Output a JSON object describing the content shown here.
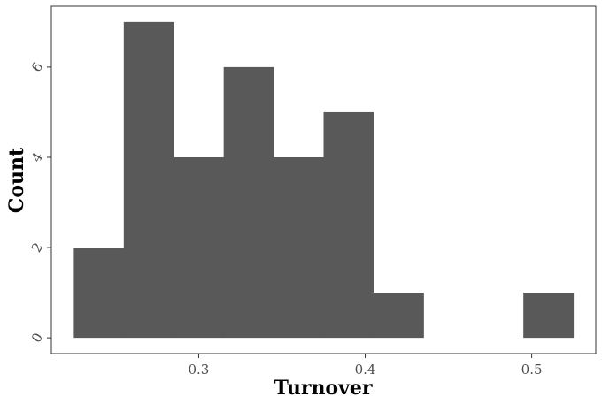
{
  "chart_data": {
    "type": "bar",
    "subtype": "histogram",
    "title": "",
    "xlabel": "Turnover",
    "ylabel": "Count",
    "bin_width": 0.03,
    "bins": [
      {
        "start": 0.225,
        "end": 0.255,
        "count": 2
      },
      {
        "start": 0.255,
        "end": 0.285,
        "count": 7
      },
      {
        "start": 0.285,
        "end": 0.315,
        "count": 4
      },
      {
        "start": 0.315,
        "end": 0.345,
        "count": 6
      },
      {
        "start": 0.345,
        "end": 0.375,
        "count": 4
      },
      {
        "start": 0.375,
        "end": 0.405,
        "count": 5
      },
      {
        "start": 0.405,
        "end": 0.435,
        "count": 1
      },
      {
        "start": 0.435,
        "end": 0.465,
        "count": 0
      },
      {
        "start": 0.465,
        "end": 0.495,
        "count": 0
      },
      {
        "start": 0.495,
        "end": 0.525,
        "count": 1
      }
    ],
    "xlim": [
      0.2115,
      0.5385
    ],
    "ylim": [
      -0.35,
      7.35
    ],
    "x_ticks": [
      {
        "value": 0.3,
        "label": "0.3"
      },
      {
        "value": 0.4,
        "label": "0.4"
      },
      {
        "value": 0.5,
        "label": "0.5"
      }
    ],
    "y_ticks": [
      {
        "value": 0,
        "label": "0"
      },
      {
        "value": 2,
        "label": "2"
      },
      {
        "value": 4,
        "label": "4"
      },
      {
        "value": 6,
        "label": "6"
      }
    ],
    "grid": false,
    "legend": "none",
    "bar_color": "#595959",
    "frame_color": "#333333"
  }
}
